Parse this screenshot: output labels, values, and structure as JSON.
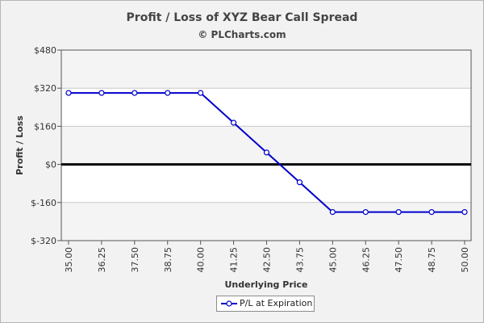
{
  "chart_data": {
    "type": "line",
    "title": "Profit / Loss of XYZ Bear Call Spread",
    "subtitle": "© PLCharts.com",
    "xlabel": "Underlying Price",
    "ylabel": "Profit / Loss",
    "categories": [
      "35.00",
      "36.25",
      "37.50",
      "38.75",
      "40.00",
      "41.25",
      "42.50",
      "43.75",
      "45.00",
      "46.25",
      "47.50",
      "48.75",
      "50.00"
    ],
    "series": [
      {
        "name": "P/L at Expiration",
        "color": "#0000cc",
        "values": [
          300,
          300,
          300,
          300,
          300,
          175,
          50,
          -75,
          -200,
          -200,
          -200,
          -200,
          -200
        ]
      }
    ],
    "ylim": [
      -320,
      480
    ],
    "yticks": [
      -320,
      -160,
      0,
      160,
      320,
      480
    ],
    "ytick_labels": [
      "$-320",
      "$-160",
      "$0",
      "$160",
      "$320",
      "$480"
    ],
    "grid": true,
    "zero_line": true,
    "legend_position": "bottom-center"
  }
}
